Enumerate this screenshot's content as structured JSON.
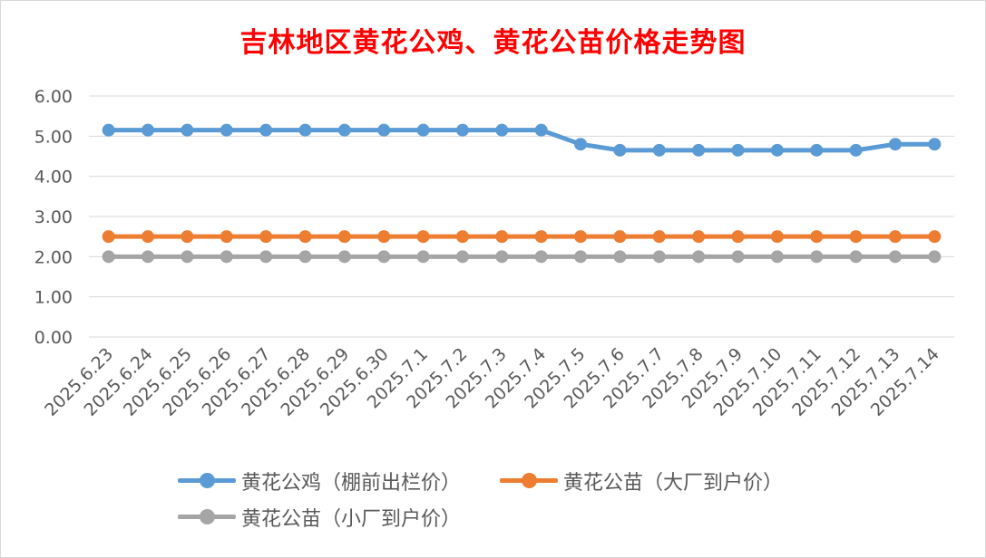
{
  "title": "吉林地区黄花公鸡、黄花公苗价格走势图",
  "chart_data": {
    "type": "line",
    "title": "吉林地区黄花公鸡、黄花公苗价格走势图",
    "xlabel": "",
    "ylabel": "",
    "ylim": [
      0,
      6
    ],
    "ytick_labels": [
      "0.00",
      "1.00",
      "2.00",
      "3.00",
      "4.00",
      "5.00",
      "6.00"
    ],
    "grid": true,
    "legend_position": "bottom",
    "categories": [
      "2025.6.23",
      "2025.6.24",
      "2025.6.25",
      "2025.6.26",
      "2025.6.27",
      "2025.6.28",
      "2025.6.29",
      "2025.6.30",
      "2025.7.1",
      "2025.7.2",
      "2025.7.3",
      "2025.7.4",
      "2025.7.5",
      "2025.7.6",
      "2025.7.7",
      "2025.7.8",
      "2025.7.9",
      "2025.7.10",
      "2025.7.11",
      "2025.7.12",
      "2025.7.13",
      "2025.7.14"
    ],
    "series": [
      {
        "name": "黄花公鸡（棚前出栏价）",
        "color": "#5b9bd5",
        "values": [
          5.15,
          5.15,
          5.15,
          5.15,
          5.15,
          5.15,
          5.15,
          5.15,
          5.15,
          5.15,
          5.15,
          5.15,
          4.8,
          4.65,
          4.65,
          4.65,
          4.65,
          4.65,
          4.65,
          4.65,
          4.8,
          4.8
        ]
      },
      {
        "name": "黄花公苗（大厂到户价）",
        "color": "#ed7d31",
        "values": [
          2.5,
          2.5,
          2.5,
          2.5,
          2.5,
          2.5,
          2.5,
          2.5,
          2.5,
          2.5,
          2.5,
          2.5,
          2.5,
          2.5,
          2.5,
          2.5,
          2.5,
          2.5,
          2.5,
          2.5,
          2.5,
          2.5
        ]
      },
      {
        "name": "黄花公苗（小厂到户价）",
        "color": "#a5a5a5",
        "values": [
          2.0,
          2.0,
          2.0,
          2.0,
          2.0,
          2.0,
          2.0,
          2.0,
          2.0,
          2.0,
          2.0,
          2.0,
          2.0,
          2.0,
          2.0,
          2.0,
          2.0,
          2.0,
          2.0,
          2.0,
          2.0,
          2.0
        ]
      }
    ]
  }
}
